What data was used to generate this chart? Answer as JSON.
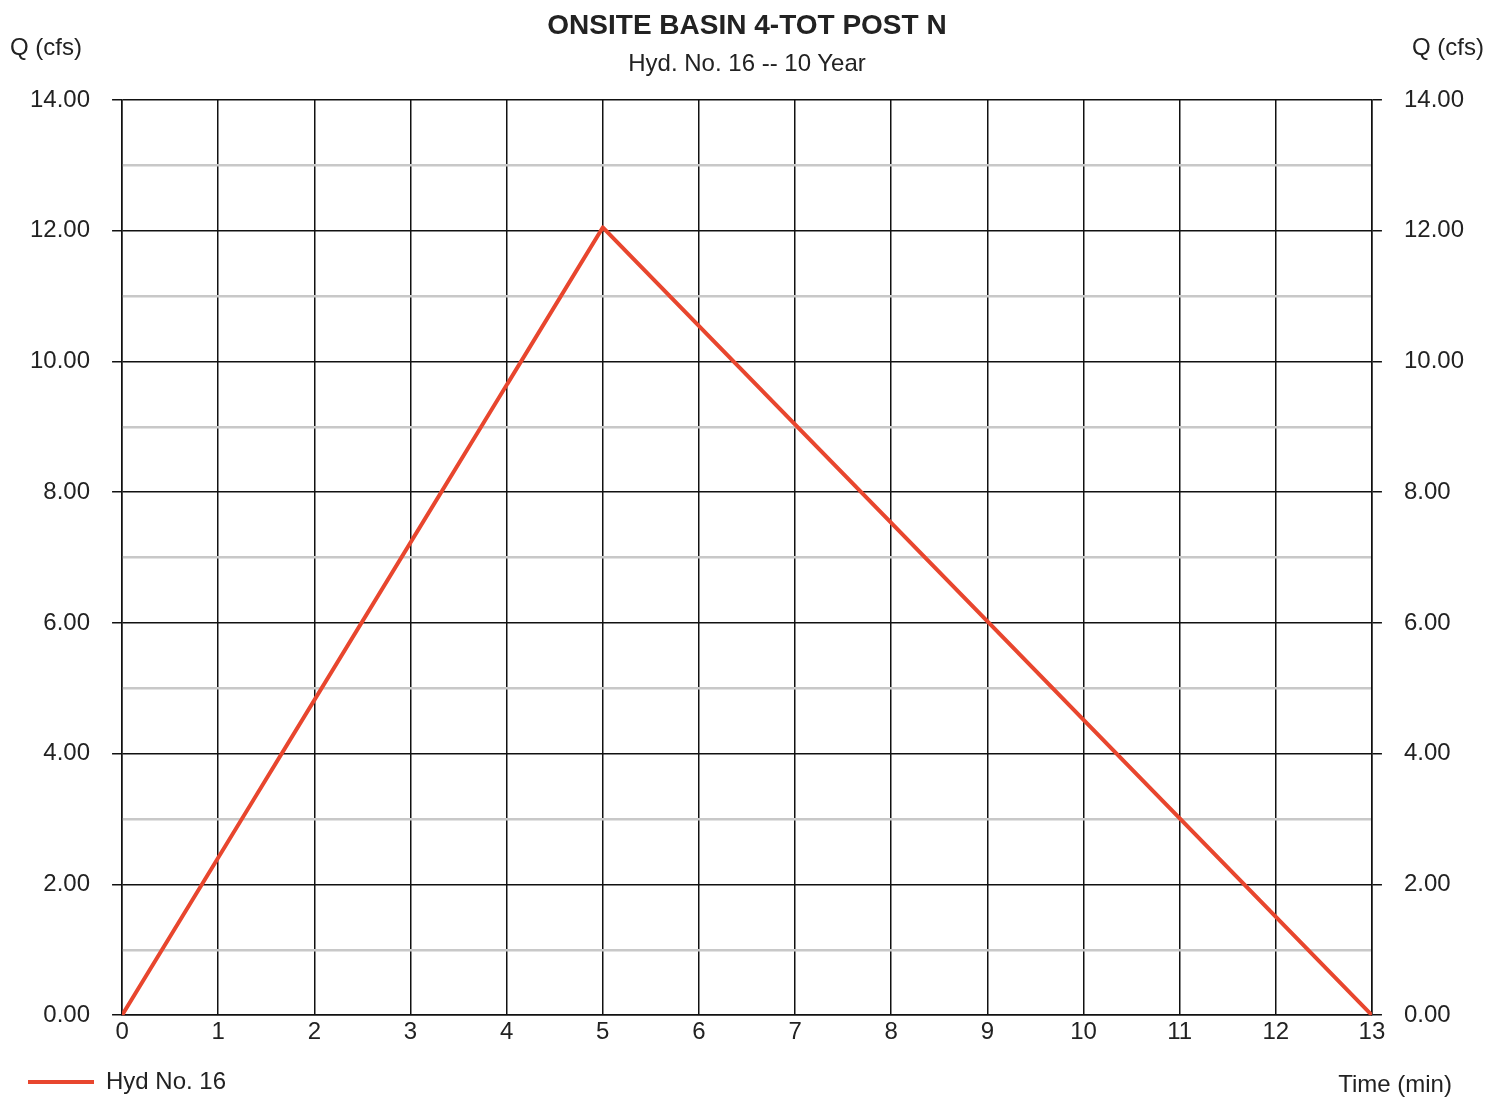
{
  "chart_data": {
    "type": "line",
    "title": "ONSITE BASIN 4-TOT POST N",
    "subtitle": "Hyd. No. 16 -- 10 Year",
    "xlabel": "Time (min)",
    "ylabel": "Q (cfs)",
    "y2label": "Q (cfs)",
    "x": [
      0,
      5,
      13
    ],
    "series": [
      {
        "name": "Hyd No. 16",
        "color": "#e8462e",
        "values": [
          0,
          12.05,
          0
        ]
      }
    ],
    "xlim": [
      0,
      13
    ],
    "xticks": [
      0,
      1,
      2,
      3,
      4,
      5,
      6,
      7,
      8,
      9,
      10,
      11,
      12,
      13
    ],
    "ylim": [
      0,
      14
    ],
    "yticks": [
      {
        "value": 0,
        "label": "0.00"
      },
      {
        "value": 1,
        "label": null
      },
      {
        "value": 2,
        "label": "2.00"
      },
      {
        "value": 3,
        "label": null
      },
      {
        "value": 4,
        "label": "4.00"
      },
      {
        "value": 5,
        "label": null
      },
      {
        "value": 6,
        "label": "6.00"
      },
      {
        "value": 7,
        "label": null
      },
      {
        "value": 8,
        "label": "8.00"
      },
      {
        "value": 9,
        "label": null
      },
      {
        "value": 10,
        "label": "10.00"
      },
      {
        "value": 11,
        "label": null
      },
      {
        "value": 12,
        "label": "12.00"
      },
      {
        "value": 13,
        "label": null
      },
      {
        "value": 14,
        "label": "14.00"
      }
    ],
    "y2lim": [
      0,
      14
    ],
    "y2ticks": [
      {
        "value": 0,
        "label": "0.00"
      },
      {
        "value": 2,
        "label": "2.00"
      },
      {
        "value": 4,
        "label": "4.00"
      },
      {
        "value": 6,
        "label": "6.00"
      },
      {
        "value": 8,
        "label": "8.00"
      },
      {
        "value": 10,
        "label": "10.00"
      },
      {
        "value": 12,
        "label": "12.00"
      },
      {
        "value": 14,
        "label": "14.00"
      }
    ],
    "grid": true,
    "legend": "bottom left",
    "marker": "none",
    "line_style": "solid"
  }
}
